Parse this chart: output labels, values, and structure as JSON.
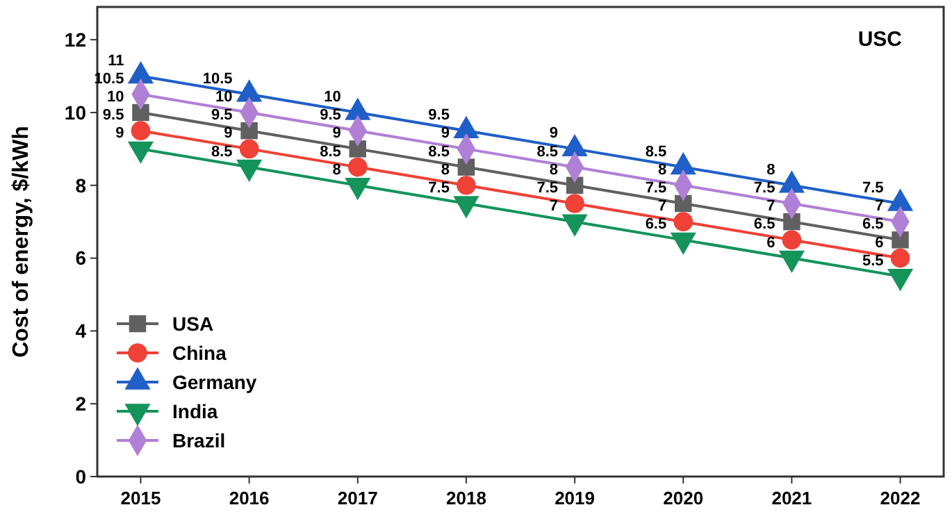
{
  "chart_data": {
    "type": "line",
    "title": "USC",
    "ylabel": "Cost of energy, $/kWh",
    "categories": [
      "2015",
      "2016",
      "2017",
      "2018",
      "2019",
      "2020",
      "2021",
      "2022"
    ],
    "ylim": [
      0,
      12.9
    ],
    "yticks": [
      0,
      2,
      4,
      6,
      8,
      10,
      12
    ],
    "grid": false,
    "legend": "bottom left",
    "data_labels": true,
    "line_style": "solid",
    "series": [
      {
        "name": "USA",
        "color": "#606060",
        "marker": "square",
        "values": [
          10,
          9.5,
          9,
          8.5,
          8,
          7.5,
          7,
          6.5
        ]
      },
      {
        "name": "China",
        "color": "#ef4136",
        "marker": "circle",
        "values": [
          9.5,
          9,
          8.5,
          8,
          7.5,
          7,
          6.5,
          6
        ]
      },
      {
        "name": "Germany",
        "color": "#1f5fc8",
        "marker": "triangle",
        "values": [
          11,
          10.5,
          10,
          9.5,
          9,
          8.5,
          8,
          7.5
        ]
      },
      {
        "name": "India",
        "color": "#14935a",
        "marker": "triangle-down",
        "values": [
          9,
          8.5,
          8,
          7.5,
          7,
          6.5,
          6,
          5.5
        ]
      },
      {
        "name": "Brazil",
        "color": "#b07fd6",
        "marker": "diamond",
        "values": [
          10.5,
          10,
          9.5,
          9,
          8.5,
          8,
          7.5,
          7
        ]
      }
    ]
  }
}
